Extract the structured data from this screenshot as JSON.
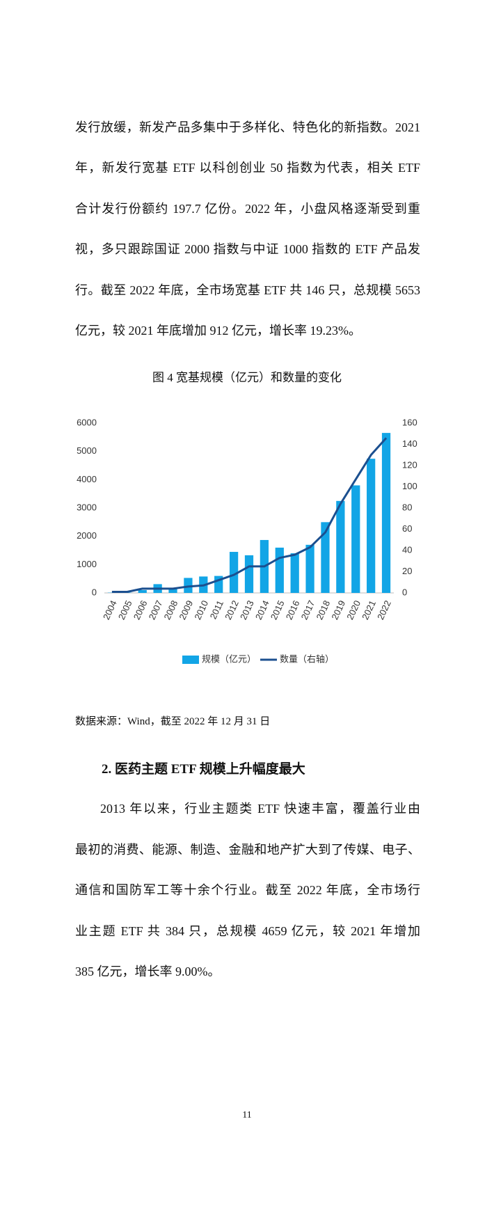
{
  "paragraph_1": {
    "lines": [
      "发行放缓，新发产品多集中于多样化、特色化的新指数。2021",
      "年，新发行宽基 ETF 以科创创业 50 指数为代表，相关 ETF",
      "合计发行份额约 197.7 亿份。2022 年，小盘风格逐渐受到重",
      "视，多只跟踪国证 2000 指数与中证 1000 指数的 ETF 产品发",
      "行。截至 2022 年底，全市场宽基 ETF 共 146 只，总规模 5653",
      "亿元，较 2021 年底增加 912 亿元，增长率 19.23%。"
    ]
  },
  "figure": {
    "caption": "图 4  宽基规模（亿元）和数量的变化",
    "source": "数据来源：Wind，截至 2022 年 12 月 31 日"
  },
  "chart_data": {
    "type": "combo",
    "categories": [
      "2004",
      "2005",
      "2006",
      "2007",
      "2008",
      "2009",
      "2010",
      "2011",
      "2012",
      "2013",
      "2014",
      "2015",
      "2016",
      "2017",
      "2018",
      "2019",
      "2020",
      "2021",
      "2022"
    ],
    "series": [
      {
        "name": "规模（亿元）",
        "type": "bar",
        "color": "#12a5e6",
        "values": [
          10,
          10,
          100,
          310,
          180,
          530,
          580,
          600,
          1450,
          1330,
          1870,
          1600,
          1400,
          1700,
          2500,
          3250,
          3800,
          4741,
          5653
        ]
      },
      {
        "name": "数量（右轴）",
        "type": "line",
        "axis": "y2",
        "color": "#1b4f8f",
        "values": [
          1,
          1,
          4,
          4,
          4,
          6,
          7,
          12,
          17,
          25,
          25,
          33,
          36,
          43,
          57,
          84,
          107,
          130,
          146
        ]
      }
    ],
    "ylim": [
      0,
      6000
    ],
    "yticks": [
      0,
      1000,
      2000,
      3000,
      4000,
      5000,
      6000
    ],
    "y2lim": [
      0,
      160
    ],
    "y2ticks": [
      0,
      20,
      40,
      60,
      80,
      100,
      120,
      140,
      160
    ],
    "grid": false,
    "legend": "bottom"
  },
  "section": {
    "heading": "2. 医药主题 ETF 规模上升幅度最大",
    "paragraph": {
      "lines": [
        "2013 年以来，行业主题类 ETF 快速丰富，覆盖行业由",
        "最初的消费、能源、制造、金融和地产扩大到了传媒、电子、",
        "通信和国防军工等十余个行业。截至 2022 年底，全市场行",
        "业主题 ETF 共 384 只，总规模 4659 亿元，较 2021 年增加",
        "385 亿元，增长率 9.00%。"
      ]
    }
  },
  "page_number": "11"
}
